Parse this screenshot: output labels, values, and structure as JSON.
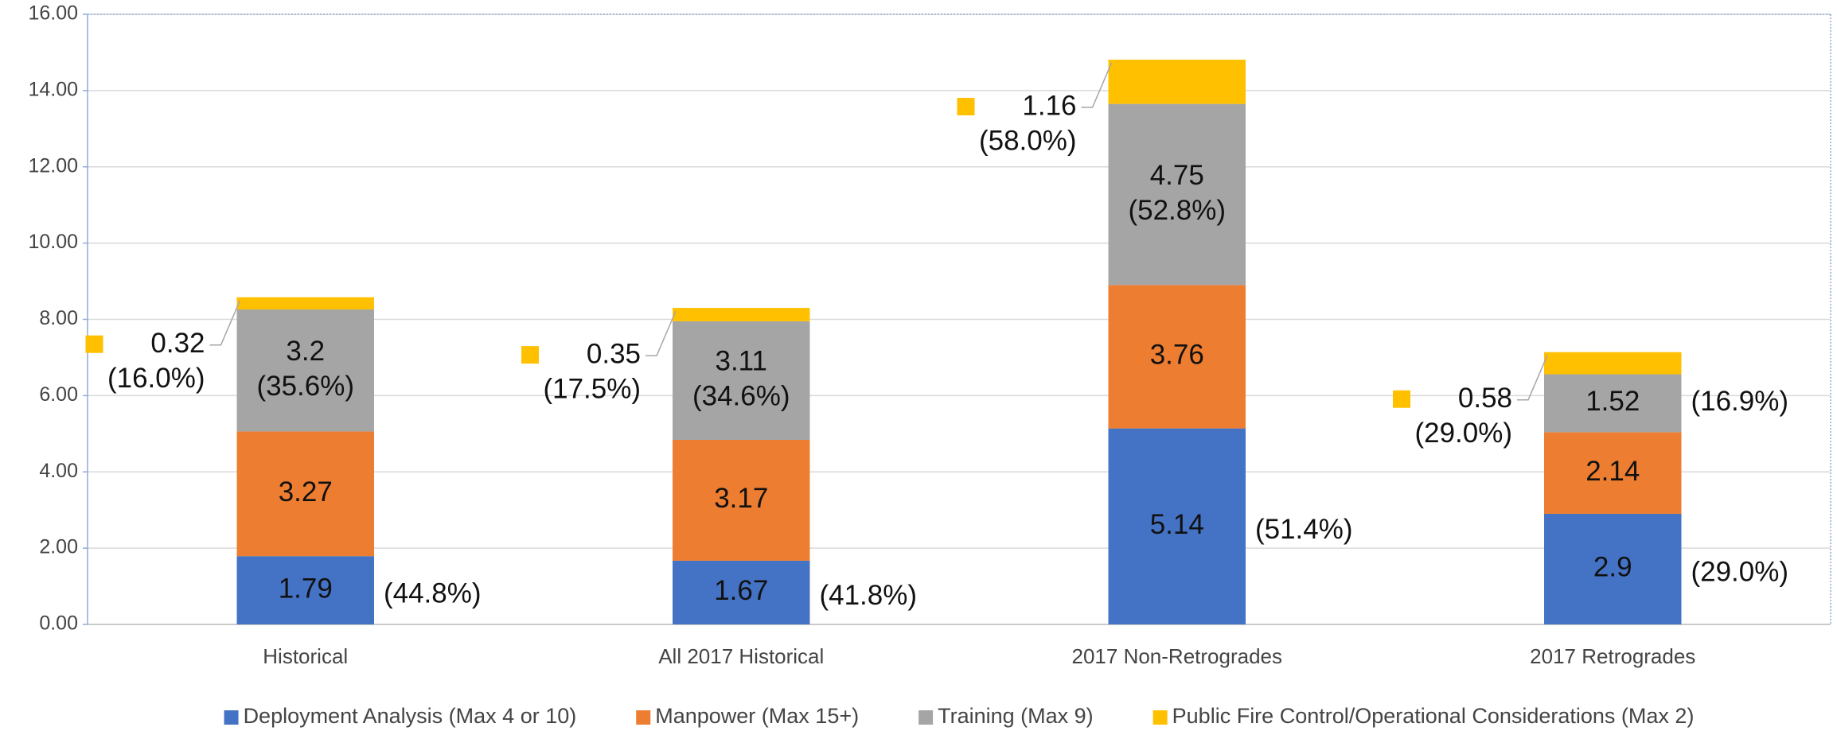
{
  "chart_data": {
    "type": "stacked_bar",
    "categories": [
      "Historical",
      "All 2017 Historical",
      "2017 Non-Retrogrades",
      "2017 Retrogrades"
    ],
    "series": [
      {
        "name": "Deployment Analysis (Max 4 or 10)",
        "color": "#4472c4",
        "values": [
          1.79,
          1.67,
          5.14,
          2.9
        ],
        "percent_labels": [
          "(44.8%)",
          "(41.8%)",
          "(51.4%)",
          "(29.0%)"
        ]
      },
      {
        "name": "Manpower (Max 15+)",
        "color": "#ed7d31",
        "values": [
          3.27,
          3.17,
          3.76,
          2.14
        ]
      },
      {
        "name": "Training (Max 9)",
        "color": "#a5a5a5",
        "values": [
          3.2,
          3.11,
          4.75,
          1.52
        ],
        "percent_labels": [
          "(35.6%)",
          "(34.6%)",
          "(52.8%)",
          "(16.9%)"
        ]
      },
      {
        "name": "Public Fire Control/Operational Considerations (Max 2)",
        "color": "#ffc000",
        "values": [
          0.32,
          0.35,
          1.16,
          0.58
        ],
        "percent_labels": [
          "(16.0%)",
          "(17.5%)",
          "(58.0%)",
          "(29.0%)"
        ]
      }
    ],
    "ylim": [
      0,
      16
    ],
    "yticks": [
      {
        "value": 0,
        "label": "0.00"
      },
      {
        "value": 2,
        "label": "2.00"
      },
      {
        "value": 4,
        "label": "4.00"
      },
      {
        "value": 6,
        "label": "6.00"
      },
      {
        "value": 8,
        "label": "8.00"
      },
      {
        "value": 10,
        "label": "10.00"
      },
      {
        "value": 12,
        "label": "12.00"
      },
      {
        "value": 14,
        "label": "14.00"
      },
      {
        "value": 16,
        "label": "16.00"
      }
    ],
    "grid": true,
    "legend": "bottom"
  }
}
